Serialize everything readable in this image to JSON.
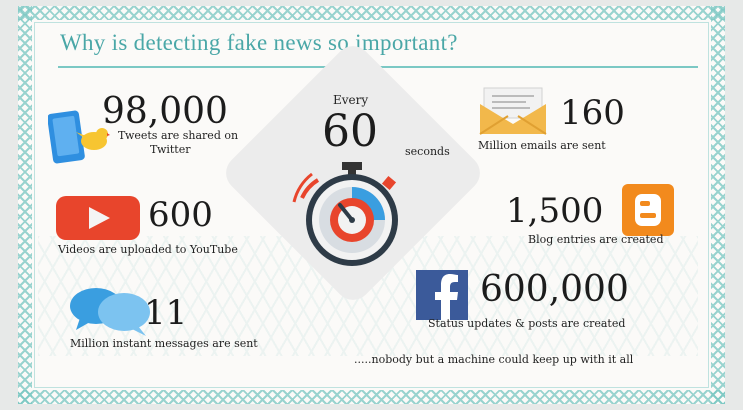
{
  "title": "Why is detecting fake news so important?",
  "center": {
    "every": "Every",
    "number": "60",
    "unit": "seconds"
  },
  "stats": {
    "tweets": {
      "number": "98,000",
      "label_line1": "Tweets are shared on",
      "label_line2": "Twitter"
    },
    "videos": {
      "number": "600",
      "label": "Videos are uploaded to YouTube"
    },
    "messages": {
      "number": "11",
      "label": "Million instant messages are sent"
    },
    "emails": {
      "number": "160",
      "label": "Million emails are sent"
    },
    "blogs": {
      "number": "1,500",
      "label": "Blog entries are created"
    },
    "status": {
      "number": "600,000",
      "label": "Status updates & posts are created"
    }
  },
  "footer": ".....nobody but a machine could keep up with it all",
  "icons": [
    "twitter-phone-icon",
    "youtube-icon",
    "chat-bubbles-icon",
    "email-icon",
    "blogger-icon",
    "facebook-icon",
    "stopwatch-icon"
  ],
  "colors": {
    "accent": "#4aa7a7",
    "twitter": "#2f8fe0",
    "youtube": "#e8452c",
    "facebook": "#3b5a9a",
    "blogger": "#f28a1d",
    "email": "#f2b84b"
  }
}
